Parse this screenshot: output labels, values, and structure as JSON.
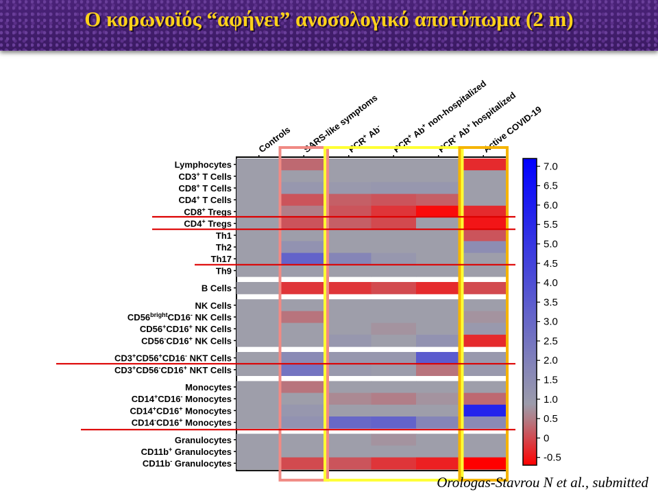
{
  "title": "Ο κορωνοϊός “αφήνει” ανοσολογικό αποτύπωμα (2 m)",
  "citation": "Orologas-Stavrou N et al., submitted",
  "chart_data": {
    "type": "heatmap",
    "columns": [
      "Controls",
      "SARS-like symptoms",
      "PCR+ Ab-",
      "PCR+ Ab+ non-hospitalized",
      "PCR+ Ab+ hospitalized",
      "Active COVID-19"
    ],
    "columns_sup": [
      [
        [
          "Controls",
          ""
        ]
      ],
      [
        [
          "SARS-like symptoms",
          ""
        ]
      ],
      [
        [
          "PCR",
          ""
        ],
        [
          "+",
          "sup"
        ],
        [
          " Ab",
          ""
        ],
        [
          "-",
          "sup"
        ]
      ],
      [
        [
          "PCR",
          ""
        ],
        [
          "+",
          "sup"
        ],
        [
          " Ab",
          ""
        ],
        [
          "+",
          "sup"
        ],
        [
          " non-hospitalized",
          ""
        ]
      ],
      [
        [
          "PCR",
          ""
        ],
        [
          "+",
          "sup"
        ],
        [
          " Ab",
          ""
        ],
        [
          "+",
          "sup"
        ],
        [
          " hospitalized",
          ""
        ]
      ],
      [
        [
          "Active COVID-19",
          ""
        ]
      ]
    ],
    "groups": [
      {
        "rows": [
          {
            "label": [
              [
                "Lymphocytes",
                ""
              ]
            ],
            "values": [
              0.8,
              0.3,
              0.8,
              0.8,
              0.8,
              -0.3
            ]
          },
          {
            "label": [
              [
                "CD3",
                ""
              ],
              [
                "+",
                "sup"
              ],
              [
                " T Cells",
                ""
              ]
            ],
            "values": [
              0.8,
              0.8,
              0.8,
              0.8,
              0.8,
              0.8
            ]
          },
          {
            "label": [
              [
                "CD8",
                ""
              ],
              [
                "+",
                "sup"
              ],
              [
                " T Cells",
                ""
              ]
            ],
            "values": [
              0.8,
              1.1,
              1.0,
              1.1,
              1.1,
              0.8
            ]
          },
          {
            "label": [
              [
                "CD4",
                ""
              ],
              [
                "+",
                "sup"
              ],
              [
                " T Cells",
                ""
              ]
            ],
            "values": [
              0.8,
              0.1,
              0.2,
              0.1,
              0.2,
              0.8
            ]
          },
          {
            "label": [
              [
                "CD8",
                ""
              ],
              [
                "+",
                "sup"
              ],
              [
                " Tregs",
                ""
              ]
            ],
            "values": [
              0.8,
              0.5,
              0.1,
              -0.2,
              -0.6,
              -0.3
            ]
          },
          {
            "label": [
              [
                "CD4",
                ""
              ],
              [
                "+",
                "sup"
              ],
              [
                " Tregs",
                ""
              ]
            ],
            "values": [
              0.8,
              0.1,
              0.2,
              0.0,
              0.8,
              -0.5
            ]
          },
          {
            "label": [
              [
                "Th1",
                ""
              ]
            ],
            "values": [
              0.8,
              0.8,
              0.8,
              0.8,
              0.8,
              0.1
            ]
          },
          {
            "label": [
              [
                "Th2",
                ""
              ]
            ],
            "values": [
              0.8,
              1.3,
              0.8,
              0.8,
              0.8,
              1.5
            ]
          },
          {
            "label": [
              [
                "Th17",
                ""
              ]
            ],
            "values": [
              0.8,
              3.2,
              1.8,
              1.1,
              0.8,
              0.8
            ]
          },
          {
            "label": [
              [
                "Th9",
                ""
              ]
            ],
            "values": [
              0.8,
              0.9,
              0.8,
              0.8,
              0.8,
              0.8
            ]
          }
        ]
      },
      {
        "rows": [
          {
            "label": [
              [
                "B Cells",
                ""
              ]
            ],
            "values": [
              0.8,
              -0.2,
              -0.2,
              0.0,
              -0.3,
              0.0
            ]
          }
        ]
      },
      {
        "rows": [
          {
            "label": [
              [
                "NK Cells",
                ""
              ]
            ],
            "values": [
              0.8,
              0.8,
              0.8,
              0.8,
              0.8,
              0.8
            ]
          },
          {
            "label": [
              [
                "CD56",
                ""
              ],
              [
                "bright",
                "sup"
              ],
              [
                "CD16",
                ""
              ],
              [
                "-",
                "sup"
              ],
              [
                " NK Cells",
                ""
              ]
            ],
            "values": [
              0.8,
              0.4,
              0.8,
              0.8,
              0.8,
              0.7
            ]
          },
          {
            "label": [
              [
                "CD56",
                ""
              ],
              [
                "+",
                "sup"
              ],
              [
                "CD16",
                ""
              ],
              [
                "+",
                "sup"
              ],
              [
                " NK Cells",
                ""
              ]
            ],
            "values": [
              0.8,
              0.8,
              0.8,
              0.7,
              0.8,
              1.0
            ]
          },
          {
            "label": [
              [
                "CD56",
                ""
              ],
              [
                "-",
                "sup"
              ],
              [
                "CD16",
                ""
              ],
              [
                "+",
                "sup"
              ],
              [
                " NK Cells",
                ""
              ]
            ],
            "values": [
              0.8,
              0.8,
              1.1,
              0.8,
              1.3,
              -0.3
            ]
          }
        ]
      },
      {
        "rows": [
          {
            "label": [
              [
                "CD3",
                ""
              ],
              [
                "+",
                "sup"
              ],
              [
                "CD56",
                ""
              ],
              [
                "+",
                "sup"
              ],
              [
                "CD16",
                ""
              ],
              [
                "-",
                "sup"
              ],
              [
                " NKT Cells",
                ""
              ]
            ],
            "values": [
              0.8,
              1.6,
              1.1,
              1.1,
              3.5,
              1.0
            ]
          },
          {
            "label": [
              [
                "CD3",
                ""
              ],
              [
                "+",
                "sup"
              ],
              [
                "CD56",
                ""
              ],
              [
                "-",
                "sup"
              ],
              [
                "CD16",
                ""
              ],
              [
                "+",
                "sup"
              ],
              [
                " NKT Cells",
                ""
              ]
            ],
            "values": [
              0.8,
              2.5,
              1.0,
              0.9,
              0.4,
              1.0
            ]
          }
        ]
      },
      {
        "rows": [
          {
            "label": [
              [
                "Monocytes",
                ""
              ]
            ],
            "values": [
              0.8,
              0.4,
              0.8,
              0.8,
              0.8,
              0.8
            ]
          },
          {
            "label": [
              [
                "CD14",
                ""
              ],
              [
                "+",
                "sup"
              ],
              [
                "CD16",
                ""
              ],
              [
                "-",
                "sup"
              ],
              [
                " Monocytes",
                ""
              ]
            ],
            "values": [
              0.8,
              0.8,
              0.6,
              0.5,
              0.7,
              0.3
            ]
          },
          {
            "label": [
              [
                "CD14",
                ""
              ],
              [
                "+",
                "sup"
              ],
              [
                "CD16",
                ""
              ],
              [
                "+",
                "sup"
              ],
              [
                " Monocytes",
                ""
              ]
            ],
            "values": [
              0.8,
              1.1,
              0.8,
              0.8,
              0.8,
              5.8
            ]
          },
          {
            "label": [
              [
                "CD14",
                ""
              ],
              [
                "-",
                "sup"
              ],
              [
                "CD16",
                ""
              ],
              [
                "+",
                "sup"
              ],
              [
                " Monocytes",
                ""
              ]
            ],
            "values": [
              0.8,
              1.3,
              3.0,
              3.2,
              1.8,
              1.6
            ]
          }
        ]
      },
      {
        "rows": [
          {
            "label": [
              [
                "Granulocytes",
                ""
              ]
            ],
            "values": [
              0.8,
              0.8,
              0.8,
              0.7,
              0.8,
              0.8
            ]
          },
          {
            "label": [
              [
                "CD11b",
                ""
              ],
              [
                "+",
                "sup"
              ],
              [
                " Granulocytes",
                ""
              ]
            ],
            "values": [
              0.8,
              0.8,
              0.8,
              0.8,
              0.8,
              0.8
            ]
          },
          {
            "label": [
              [
                "CD11b",
                ""
              ],
              [
                "-",
                "sup"
              ],
              [
                " Granulocytes",
                ""
              ]
            ],
            "values": [
              0.8,
              0.0,
              0.1,
              -0.2,
              -0.4,
              -0.7
            ]
          }
        ]
      }
    ],
    "colorbar": {
      "min": -0.7,
      "max": 7.2,
      "ticks": [
        "7.0",
        "6.5",
        "6.0",
        "5.5",
        "5.0",
        "4.5",
        "4.0",
        "3.5",
        "3.0",
        "2.5",
        "2.0",
        "1.5",
        "1.0",
        "0.5",
        "0",
        "-0.5"
      ],
      "colors": {
        "low": "#ff0000",
        "mid": "#9e9eaa",
        "high": "#0000ff"
      }
    },
    "highlight_boxes": [
      {
        "columns": [
          1,
          1
        ],
        "color": "#f08a84"
      },
      {
        "columns": [
          2,
          4
        ],
        "color": "#ffff33"
      },
      {
        "columns": [
          5,
          5
        ],
        "color": "#f5b400"
      }
    ],
    "highlight_rows": [
      "CD4+ Tregs",
      "Th17",
      "CD3+CD56+CD16- NKT Cells",
      "CD14-CD16+ Monocytes"
    ],
    "highlight_line_color": "#dd0000"
  }
}
